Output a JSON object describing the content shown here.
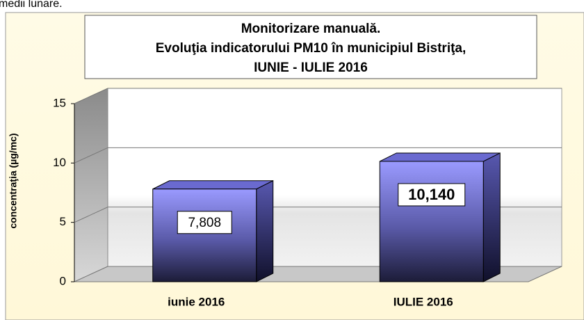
{
  "page_text": "medii lunare.",
  "chart_data": {
    "type": "bar",
    "title": [
      "Monitorizare manuală.",
      "Evoluţia indicatorului PM10 în municipiul Bistriţa,",
      "IUNIE - IULIE  2016"
    ],
    "y_label": "concentraţia (µg/mc)",
    "categories": [
      "iunie 2016",
      "IULIE 2016"
    ],
    "values": [
      7.808,
      10.14
    ],
    "value_labels": [
      "7,808",
      "10,140"
    ],
    "color": "#7878d8",
    "ylim": [
      0,
      15
    ],
    "yticks": [
      0,
      5,
      10,
      15
    ],
    "grid": true
  }
}
